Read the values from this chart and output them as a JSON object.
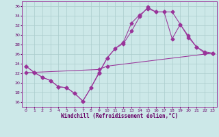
{
  "bg_color": "#cce8e8",
  "grid_color": "#aacccc",
  "line_color": "#993399",
  "xlim": [
    -0.5,
    23.5
  ],
  "ylim": [
    15.0,
    37.0
  ],
  "yticks": [
    16,
    18,
    20,
    22,
    24,
    26,
    28,
    30,
    32,
    34,
    36
  ],
  "xticks": [
    0,
    1,
    2,
    3,
    4,
    5,
    6,
    7,
    8,
    9,
    10,
    11,
    12,
    13,
    14,
    15,
    16,
    17,
    18,
    19,
    20,
    21,
    22,
    23
  ],
  "xlabel": "Windchill (Refroidissement éolien,°C)",
  "curve1_x": [
    0,
    1,
    2,
    3,
    4,
    5,
    6,
    7,
    8,
    9,
    10,
    11,
    12,
    13,
    14,
    15,
    16,
    17,
    18,
    19,
    20,
    21,
    22,
    23
  ],
  "curve1_y": [
    23.5,
    22.2,
    21.2,
    20.5,
    19.2,
    19.0,
    17.8,
    16.2,
    19.0,
    22.0,
    25.2,
    27.2,
    28.2,
    30.8,
    33.8,
    35.8,
    34.8,
    34.8,
    34.8,
    32.2,
    29.8,
    27.5,
    26.2,
    26.2
  ],
  "curve2_x": [
    0,
    1,
    2,
    3,
    4,
    5,
    6,
    7,
    8,
    9,
    10,
    11,
    12,
    13,
    14,
    15,
    16,
    17,
    18,
    19,
    20,
    21,
    22,
    23
  ],
  "curve2_y": [
    23.5,
    22.2,
    21.2,
    20.5,
    19.2,
    19.0,
    17.8,
    16.2,
    19.0,
    22.2,
    25.2,
    27.2,
    28.5,
    32.5,
    34.2,
    35.5,
    34.8,
    34.8,
    29.2,
    32.2,
    29.5,
    27.5,
    26.5,
    26.2
  ],
  "curve3_x": [
    0,
    1,
    9,
    10,
    23
  ],
  "curve3_y": [
    22.2,
    22.2,
    22.8,
    23.5,
    26.2
  ]
}
